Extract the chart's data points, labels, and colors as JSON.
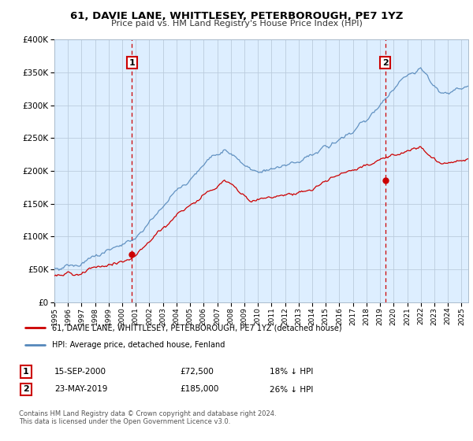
{
  "title": "61, DAVIE LANE, WHITTLESEY, PETERBOROUGH, PE7 1YZ",
  "subtitle": "Price paid vs. HM Land Registry's House Price Index (HPI)",
  "legend_line1": "61, DAVIE LANE, WHITTLESEY, PETERBOROUGH, PE7 1YZ (detached house)",
  "legend_line2": "HPI: Average price, detached house, Fenland",
  "footer": "Contains HM Land Registry data © Crown copyright and database right 2024.\nThis data is licensed under the Open Government Licence v3.0.",
  "point1_date": "15-SEP-2000",
  "point1_price": "£72,500",
  "point1_hpi": "18% ↓ HPI",
  "point2_date": "23-MAY-2019",
  "point2_price": "£185,000",
  "point2_hpi": "26% ↓ HPI",
  "sale1_year": 2000.71,
  "sale1_price": 72500,
  "sale2_year": 2019.38,
  "sale2_price": 185000,
  "red_color": "#cc0000",
  "blue_color": "#5588bb",
  "blue_fill": "#ddeeff",
  "background_color": "#ddeeff",
  "grid_color": "#bbccdd",
  "ylim": [
    0,
    400000
  ],
  "xlim": [
    1995.0,
    2025.5
  ]
}
